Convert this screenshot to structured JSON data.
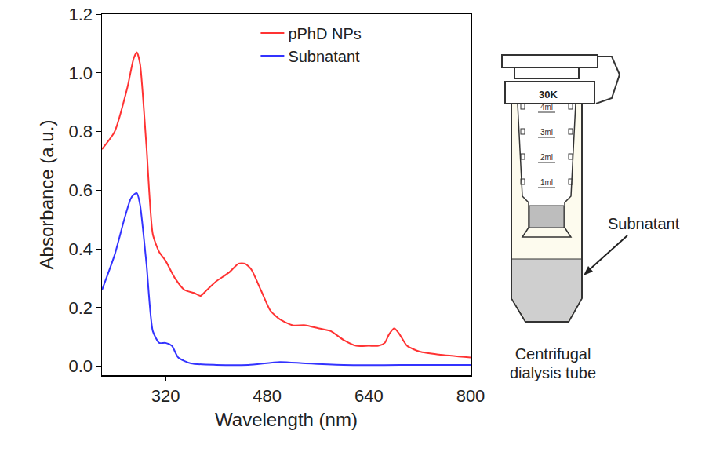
{
  "chart_data": {
    "type": "line",
    "x_label": "Wavelength (nm)",
    "y_label": "Absorbance (a.u.)",
    "xlim": [
      220,
      800
    ],
    "xticks": [
      320,
      480,
      640,
      800
    ],
    "ylim": [
      -0.03,
      1.2
    ],
    "yticks": [
      {
        "value": 0,
        "label": "0.0"
      },
      0.2,
      0.4,
      0.6,
      0.8,
      {
        "value": 1,
        "label": "1.0"
      },
      1.2
    ],
    "grid": false,
    "legend": "top right",
    "series": [
      {
        "name": "pPhD NPs",
        "color": "#ff3333",
        "x": [
          220,
          240,
          260,
          270,
          275,
          280,
          290,
          300,
          310,
          320,
          335,
          350,
          365,
          375,
          385,
          400,
          420,
          435,
          445,
          455,
          470,
          485,
          500,
          520,
          540,
          560,
          580,
          600,
          620,
          640,
          655,
          665,
          672,
          680,
          688,
          700,
          720,
          750,
          800
        ],
        "values": [
          0.74,
          0.8,
          0.95,
          1.05,
          1.07,
          1.03,
          0.75,
          0.45,
          0.39,
          0.36,
          0.3,
          0.26,
          0.25,
          0.24,
          0.26,
          0.29,
          0.32,
          0.35,
          0.35,
          0.33,
          0.26,
          0.19,
          0.16,
          0.14,
          0.14,
          0.13,
          0.12,
          0.09,
          0.07,
          0.07,
          0.07,
          0.08,
          0.11,
          0.13,
          0.11,
          0.07,
          0.05,
          0.04,
          0.03
        ]
      },
      {
        "name": "Subnatant",
        "color": "#3333ff",
        "x": [
          220,
          240,
          255,
          265,
          270,
          275,
          280,
          290,
          300,
          310,
          320,
          330,
          340,
          360,
          400,
          450,
          500,
          540,
          600,
          800
        ],
        "values": [
          0.26,
          0.38,
          0.5,
          0.57,
          0.585,
          0.59,
          0.55,
          0.35,
          0.12,
          0.08,
          0.08,
          0.07,
          0.03,
          0.01,
          0.005,
          0.005,
          0.015,
          0.01,
          0.005,
          0.005
        ]
      }
    ]
  },
  "diagram": {
    "tube_label": "30K",
    "scale_marks": [
      "4ml",
      "3ml",
      "2ml",
      "1ml"
    ],
    "callout": "Subnatant",
    "caption": "Centrifugal dialysis tube"
  }
}
